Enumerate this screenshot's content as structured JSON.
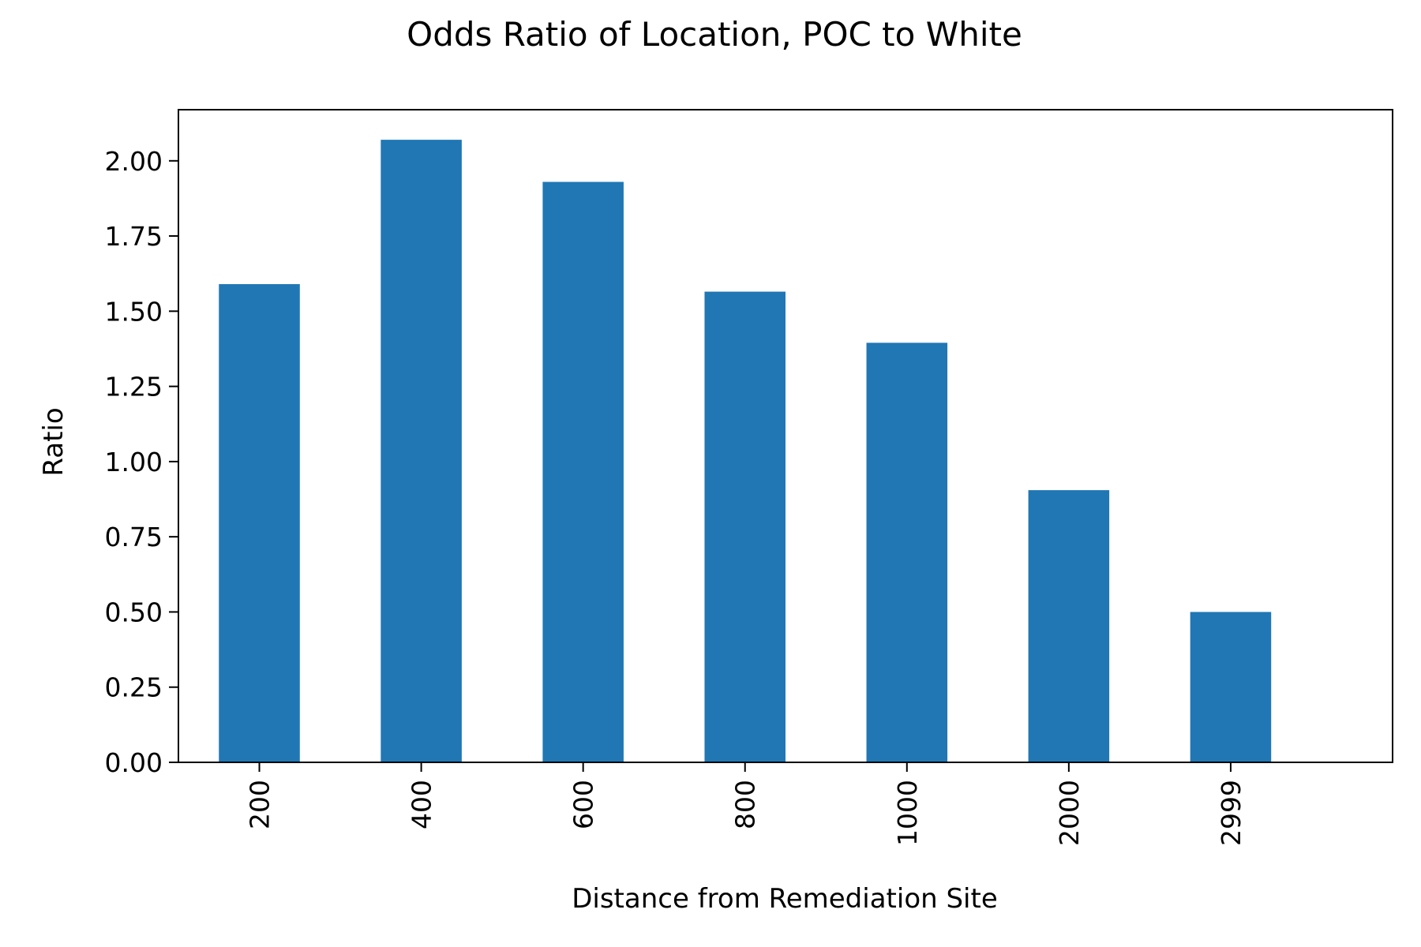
{
  "chart_data": {
    "type": "bar",
    "title": "Odds Ratio of Location, POC to White",
    "xlabel": "Distance from Remediation Site",
    "ylabel": "Ratio",
    "categories": [
      "200",
      "400",
      "600",
      "800",
      "1000",
      "2000",
      "2999"
    ],
    "values": [
      1.59,
      2.07,
      1.93,
      1.565,
      1.395,
      0.905,
      0.5
    ],
    "ylim": [
      0,
      2.17
    ],
    "yticks": [
      "0.00",
      "0.25",
      "0.50",
      "0.75",
      "1.00",
      "1.25",
      "1.50",
      "1.75",
      "2.00"
    ],
    "grid": false,
    "legend": "none",
    "bar_color": "#2077b4"
  }
}
